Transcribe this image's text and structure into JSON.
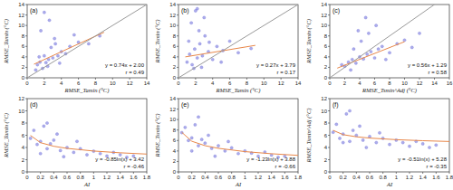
{
  "chart_data": [
    {
      "type": "scatter",
      "title": "(a)",
      "x_label": "RMSE_Tamin (°C)",
      "y_label": "RMSE_Tamin (°C)",
      "xlim": [
        0,
        14
      ],
      "ylim": [
        0,
        14
      ],
      "xticks": [
        0,
        2,
        4,
        6,
        8,
        10,
        12,
        14
      ],
      "yticks": [
        0,
        2,
        4,
        6,
        8,
        10,
        12,
        14
      ],
      "annotations": [
        "y = 0.74x + 2.00",
        "r = 0.49"
      ],
      "series": [
        {
          "type": "scatter",
          "color": "#6a6ad8",
          "x": [
            1.2,
            1.5,
            1.8,
            2.0,
            2.2,
            2.5,
            2.8,
            3.0,
            3.3,
            3.6,
            4.0,
            4.5,
            5.0,
            5.5,
            6.0,
            1.6,
            2.4,
            3.2,
            1.0,
            7.2,
            8.5,
            2.0,
            2.6,
            3.8,
            1.4
          ],
          "values": [
            2.5,
            3.0,
            1.8,
            4.2,
            2.9,
            3.5,
            5.8,
            3.8,
            6.5,
            4.2,
            5.0,
            4.6,
            6.0,
            8.2,
            6.8,
            9.0,
            2.2,
            7.5,
            1.5,
            6.5,
            8.0,
            12.5,
            11.0,
            2.8,
            4.0
          ]
        },
        {
          "type": "line",
          "color": "#e8874a",
          "x": [
            0.8,
            9
          ],
          "values": [
            2.6,
            8.7
          ]
        },
        {
          "type": "line",
          "color": "#999999",
          "x": [
            0,
            14
          ],
          "values": [
            0,
            14
          ]
        }
      ]
    },
    {
      "type": "scatter",
      "title": "(b)",
      "x_label": "RMSE_Tamin (°C)",
      "y_label": "RMSE_Tsmin (°C)",
      "xlim": [
        0,
        14
      ],
      "ylim": [
        0,
        14
      ],
      "xticks": [
        0,
        2,
        4,
        6,
        8,
        10,
        12,
        14
      ],
      "yticks": [
        0,
        2,
        4,
        6,
        8,
        10,
        12,
        14
      ],
      "annotations": [
        "y = 0.27x + 3.79",
        "r = 0.17"
      ],
      "series": [
        {
          "type": "scatter",
          "color": "#6a6ad8",
          "x": [
            1.0,
            1.3,
            1.6,
            1.9,
            2.2,
            2.5,
            2.8,
            3.1,
            3.5,
            4.0,
            4.5,
            5.2,
            6.0,
            7.0,
            1.5,
            2.0,
            2.4,
            3.0,
            1.2,
            2.7,
            3.6,
            8.5,
            1.8,
            2.2,
            5.0
          ],
          "values": [
            3.0,
            4.5,
            2.5,
            5.5,
            3.8,
            6.5,
            4.2,
            8.0,
            5.0,
            3.5,
            6.0,
            5.2,
            7.0,
            4.8,
            10.5,
            12.8,
            9.0,
            11.5,
            7.0,
            2.0,
            6.8,
            5.6,
            1.8,
            13.2,
            3.0
          ]
        },
        {
          "type": "line",
          "color": "#e8874a",
          "x": [
            0.8,
            9
          ],
          "values": [
            4.0,
            6.2
          ]
        },
        {
          "type": "line",
          "color": "#999999",
          "x": [
            0,
            14
          ],
          "values": [
            0,
            14
          ]
        }
      ]
    },
    {
      "type": "scatter",
      "title": "(c)",
      "x_label": "RMSE_Tsmin^Adj (°C)",
      "y_label": "RMSE_Tamin (°C)",
      "xlim": [
        0,
        16
      ],
      "ylim": [
        0,
        14
      ],
      "xticks": [
        0,
        2,
        4,
        6,
        8,
        10,
        12,
        14,
        16
      ],
      "yticks": [
        0,
        2,
        4,
        6,
        8,
        10,
        12,
        14
      ],
      "annotations": [
        "y = 0.56x + 1.29",
        "r = 0.58"
      ],
      "series": [
        {
          "type": "scatter",
          "color": "#6a6ad8",
          "x": [
            2.0,
            2.5,
            3.0,
            3.5,
            4.0,
            4.5,
            5.0,
            5.5,
            6.0,
            6.5,
            7.0,
            8.0,
            9.0,
            10.0,
            12.0,
            3.2,
            4.2,
            5.2,
            2.8,
            6.2,
            7.5,
            4.8,
            1.6,
            11.0,
            3.8
          ],
          "values": [
            2.2,
            3.0,
            3.5,
            2.8,
            4.0,
            3.6,
            4.5,
            5.0,
            3.8,
            5.5,
            6.0,
            4.8,
            6.5,
            7.2,
            8.5,
            5.5,
            7.0,
            8.5,
            1.5,
            10.0,
            3.5,
            11.5,
            2.5,
            5.8,
            9.0
          ]
        },
        {
          "type": "line",
          "color": "#e8874a",
          "x": [
            1,
            10
          ],
          "values": [
            1.85,
            6.9
          ]
        },
        {
          "type": "line",
          "color": "#999999",
          "x": [
            0,
            14
          ],
          "values": [
            0,
            14
          ]
        }
      ]
    },
    {
      "type": "scatter",
      "title": "(d)",
      "x_label": "AI",
      "y_label": "RMSE_Tamin (°C)",
      "xlim": [
        0,
        1.8
      ],
      "ylim": [
        0,
        12
      ],
      "xticks": [
        0,
        0.2,
        0.4,
        0.6,
        0.8,
        1,
        1.2,
        1.4,
        1.6,
        1.8
      ],
      "yticks": [
        0,
        2,
        4,
        6,
        8,
        10,
        12
      ],
      "annotations": [
        "y = -0.85ln(x) + 3.42",
        "r = -0.46"
      ],
      "series": [
        {
          "type": "scatter",
          "color": "#6a6ad8",
          "x": [
            0.05,
            0.1,
            0.15,
            0.2,
            0.25,
            0.3,
            0.35,
            0.4,
            0.5,
            0.6,
            0.7,
            0.8,
            0.9,
            1.0,
            1.1,
            1.2,
            1.3,
            1.4,
            1.5,
            1.6,
            0.2,
            0.3,
            0.45,
            0.55,
            0.75
          ],
          "values": [
            5.5,
            6.8,
            4.5,
            5.0,
            7.5,
            3.8,
            4.6,
            5.2,
            3.5,
            4.0,
            3.2,
            3.8,
            2.8,
            3.4,
            3.0,
            2.6,
            3.2,
            2.8,
            2.4,
            2.6,
            3.0,
            8.0,
            6.2,
            2.5,
            5.0
          ]
        },
        {
          "type": "line",
          "color": "#e8874a",
          "x": [
            0.05,
            0.2,
            0.4,
            0.6,
            1.0,
            1.4,
            1.8
          ],
          "values": [
            5.97,
            4.79,
            4.2,
            3.85,
            3.42,
            3.13,
            2.92
          ]
        }
      ]
    },
    {
      "type": "scatter",
      "title": "(e)",
      "x_label": "AI",
      "y_label": "RMSE_Tsmin (°C)",
      "xlim": [
        0,
        1.8
      ],
      "ylim": [
        0,
        14
      ],
      "xticks": [
        0,
        0.2,
        0.4,
        0.6,
        0.8,
        1,
        1.2,
        1.4,
        1.6,
        1.8
      ],
      "yticks": [
        0,
        2,
        4,
        6,
        8,
        10,
        12,
        14
      ],
      "annotations": [
        "y = -1.23ln(x) + 3.88",
        "r = -0.66"
      ],
      "series": [
        {
          "type": "scatter",
          "color": "#6a6ad8",
          "x": [
            0.05,
            0.1,
            0.15,
            0.2,
            0.25,
            0.3,
            0.35,
            0.4,
            0.5,
            0.6,
            0.7,
            0.8,
            0.9,
            1.0,
            1.1,
            1.2,
            1.3,
            1.4,
            1.5,
            1.6,
            0.2,
            0.3,
            0.45,
            0.55,
            0.75
          ],
          "values": [
            7.5,
            8.5,
            6.0,
            6.5,
            9.0,
            5.0,
            6.2,
            5.5,
            4.5,
            5.0,
            4.0,
            4.6,
            3.5,
            4.0,
            3.6,
            3.0,
            3.8,
            3.2,
            2.8,
            3.0,
            4.0,
            10.5,
            7.0,
            3.0,
            5.8
          ]
        },
        {
          "type": "line",
          "color": "#e8874a",
          "x": [
            0.05,
            0.2,
            0.4,
            0.6,
            1.0,
            1.4,
            1.8
          ],
          "values": [
            7.56,
            5.86,
            5.01,
            4.51,
            3.88,
            3.47,
            3.16
          ]
        }
      ]
    },
    {
      "type": "scatter",
      "title": "(f)",
      "x_label": "AI",
      "y_label": "RMSE_Tsmin^Adj (°C)",
      "xlim": [
        0,
        1.8
      ],
      "ylim": [
        0,
        12
      ],
      "xticks": [
        0,
        0.2,
        0.4,
        0.6,
        0.8,
        1,
        1.2,
        1.4,
        1.6,
        1.8
      ],
      "yticks": [
        0,
        2,
        4,
        6,
        8,
        10,
        12
      ],
      "annotations": [
        "y = -0.51ln(x) + 5.28",
        "r = -0.35"
      ],
      "series": [
        {
          "type": "scatter",
          "color": "#6a6ad8",
          "x": [
            0.05,
            0.1,
            0.15,
            0.2,
            0.25,
            0.3,
            0.35,
            0.4,
            0.5,
            0.6,
            0.7,
            0.8,
            0.9,
            1.0,
            1.1,
            1.2,
            1.3,
            1.4,
            1.5,
            1.6,
            0.2,
            0.3,
            0.45,
            0.55,
            0.75
          ],
          "values": [
            6.5,
            7.8,
            5.5,
            6.2,
            9.5,
            5.0,
            6.8,
            6.0,
            5.2,
            5.8,
            4.8,
            5.5,
            4.5,
            5.2,
            4.8,
            4.2,
            5.0,
            4.6,
            4.0,
            4.4,
            4.8,
            10.0,
            7.5,
            4.0,
            6.4
          ]
        },
        {
          "type": "line",
          "color": "#e8874a",
          "x": [
            0.05,
            0.2,
            0.4,
            0.6,
            1.0,
            1.4,
            1.8
          ],
          "values": [
            6.81,
            6.1,
            5.75,
            5.54,
            5.28,
            5.11,
            4.98
          ]
        }
      ]
    }
  ]
}
